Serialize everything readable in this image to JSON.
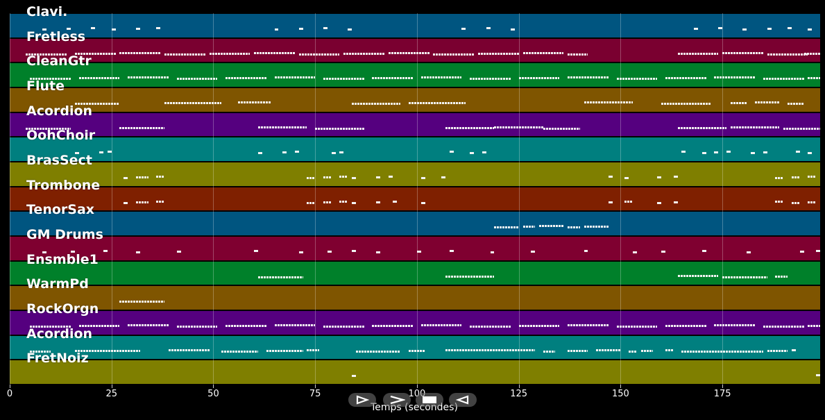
{
  "chart_data": {
    "type": "piano-roll",
    "xlabel": "Temps (secondes)",
    "xlim": [
      0,
      199
    ],
    "xticks": [
      0,
      25,
      50,
      75,
      100,
      125,
      150,
      175
    ],
    "grid": true,
    "tracks": [
      {
        "label": "Clavi.",
        "color": "#005580",
        "segments": [
          [
            8,
            1
          ],
          [
            14,
            1
          ],
          [
            20,
            1
          ],
          [
            25,
            1
          ],
          [
            31,
            1
          ],
          [
            36,
            1
          ],
          [
            65,
            1
          ],
          [
            71,
            1
          ],
          [
            77,
            1
          ],
          [
            83,
            1
          ],
          [
            111,
            1
          ],
          [
            117,
            1
          ],
          [
            123,
            1
          ],
          [
            168,
            1
          ],
          [
            174,
            1
          ],
          [
            180,
            1
          ],
          [
            186,
            1
          ],
          [
            191,
            1
          ],
          [
            196,
            1
          ]
        ]
      },
      {
        "label": "Fretless",
        "color": "#7a0030",
        "segments": [
          [
            4,
            10
          ],
          [
            16,
            10
          ],
          [
            27,
            10
          ],
          [
            38,
            10
          ],
          [
            49,
            10
          ],
          [
            60,
            10
          ],
          [
            71,
            10
          ],
          [
            82,
            10
          ],
          [
            93,
            10
          ],
          [
            104,
            10
          ],
          [
            115,
            10
          ],
          [
            126,
            10
          ],
          [
            137,
            5
          ],
          [
            164,
            10
          ],
          [
            175,
            10
          ],
          [
            186,
            10
          ],
          [
            195,
            4
          ]
        ]
      },
      {
        "label": "CleanGtr",
        "color": "#00802a",
        "segments": [
          [
            5,
            10
          ],
          [
            17,
            10
          ],
          [
            29,
            10
          ],
          [
            41,
            10
          ],
          [
            53,
            10
          ],
          [
            65,
            10
          ],
          [
            77,
            10
          ],
          [
            89,
            10
          ],
          [
            101,
            10
          ],
          [
            113,
            10
          ],
          [
            125,
            10
          ],
          [
            137,
            10
          ],
          [
            149,
            10
          ],
          [
            161,
            10
          ],
          [
            173,
            10
          ],
          [
            185,
            10
          ],
          [
            196,
            3
          ]
        ]
      },
      {
        "label": "Flute",
        "color": "#7f5500",
        "segments": [
          [
            16,
            11
          ],
          [
            38,
            14
          ],
          [
            56,
            8
          ],
          [
            84,
            12
          ],
          [
            98,
            14
          ],
          [
            141,
            12
          ],
          [
            160,
            12
          ],
          [
            177,
            4
          ],
          [
            183,
            6
          ],
          [
            191,
            4
          ]
        ]
      },
      {
        "label": "Acordion",
        "color": "#55007f",
        "segments": [
          [
            4,
            11
          ],
          [
            27,
            11
          ],
          [
            61,
            12
          ],
          [
            75,
            12
          ],
          [
            107,
            12
          ],
          [
            119,
            12
          ],
          [
            131,
            9
          ],
          [
            164,
            12
          ],
          [
            177,
            12
          ],
          [
            190,
            9
          ]
        ]
      },
      {
        "label": "OohChoir",
        "color": "#007f7f",
        "segments": [
          [
            16,
            1
          ],
          [
            22,
            1
          ],
          [
            24,
            1
          ],
          [
            61,
            1
          ],
          [
            67,
            1
          ],
          [
            70,
            1
          ],
          [
            79,
            1
          ],
          [
            81,
            1
          ],
          [
            108,
            1
          ],
          [
            113,
            1
          ],
          [
            116,
            1
          ],
          [
            165,
            1
          ],
          [
            170,
            1
          ],
          [
            173,
            1
          ],
          [
            176,
            1
          ],
          [
            182,
            1
          ],
          [
            185,
            1
          ],
          [
            193,
            1
          ],
          [
            196,
            1
          ]
        ]
      },
      {
        "label": "BrasSect",
        "color": "#7f7f00",
        "segments": [
          [
            28,
            1
          ],
          [
            31,
            3
          ],
          [
            36,
            2
          ],
          [
            73,
            2
          ],
          [
            77,
            2
          ],
          [
            81,
            2
          ],
          [
            84,
            1
          ],
          [
            90,
            1
          ],
          [
            93,
            1
          ],
          [
            101,
            1
          ],
          [
            106,
            1
          ],
          [
            147,
            1
          ],
          [
            151,
            1
          ],
          [
            159,
            1
          ],
          [
            163,
            1
          ],
          [
            188,
            2
          ],
          [
            192,
            2
          ],
          [
            196,
            2
          ]
        ]
      },
      {
        "label": "Trombone",
        "color": "#7f2000",
        "segments": [
          [
            28,
            1
          ],
          [
            31,
            3
          ],
          [
            36,
            2
          ],
          [
            73,
            2
          ],
          [
            77,
            2
          ],
          [
            81,
            2
          ],
          [
            84,
            1
          ],
          [
            90,
            1
          ],
          [
            94,
            1
          ],
          [
            101,
            1
          ],
          [
            147,
            1
          ],
          [
            151,
            2
          ],
          [
            159,
            1
          ],
          [
            163,
            1
          ],
          [
            188,
            2
          ],
          [
            192,
            2
          ],
          [
            196,
            2
          ]
        ]
      },
      {
        "label": "TenorSax",
        "color": "#005580",
        "segments": [
          [
            119,
            6
          ],
          [
            126,
            3
          ],
          [
            130,
            6
          ],
          [
            137,
            3
          ],
          [
            141,
            6
          ]
        ]
      },
      {
        "label": "GM Drums",
        "color": "#7f0030",
        "segments": [
          [
            8,
            1
          ],
          [
            15,
            1
          ],
          [
            23,
            1
          ],
          [
            31,
            1
          ],
          [
            41,
            1
          ],
          [
            60,
            1
          ],
          [
            71,
            1
          ],
          [
            78,
            1
          ],
          [
            84,
            1
          ],
          [
            90,
            1
          ],
          [
            100,
            1
          ],
          [
            108,
            1
          ],
          [
            118,
            1
          ],
          [
            128,
            1
          ],
          [
            141,
            1
          ],
          [
            153,
            1
          ],
          [
            160,
            1
          ],
          [
            170,
            1
          ],
          [
            181,
            1
          ],
          [
            194,
            1
          ],
          [
            198,
            1
          ]
        ]
      },
      {
        "label": "Ensmble1",
        "color": "#00802a",
        "segments": [
          [
            61,
            11
          ],
          [
            107,
            12
          ],
          [
            164,
            10
          ],
          [
            175,
            11
          ],
          [
            188,
            3
          ]
        ]
      },
      {
        "label": "WarmPd",
        "color": "#7f5500",
        "segments": [
          [
            27,
            11
          ]
        ]
      },
      {
        "label": "RockOrgn",
        "color": "#55007f",
        "segments": [
          [
            5,
            10
          ],
          [
            17,
            10
          ],
          [
            29,
            10
          ],
          [
            41,
            10
          ],
          [
            53,
            10
          ],
          [
            65,
            10
          ],
          [
            77,
            10
          ],
          [
            89,
            10
          ],
          [
            101,
            10
          ],
          [
            113,
            10
          ],
          [
            125,
            10
          ],
          [
            137,
            10
          ],
          [
            149,
            10
          ],
          [
            161,
            10
          ],
          [
            173,
            10
          ],
          [
            185,
            10
          ],
          [
            196,
            3
          ]
        ]
      },
      {
        "label": "Acordion",
        "color": "#007f7f",
        "segments": [
          [
            5,
            5
          ],
          [
            16,
            16
          ],
          [
            39,
            10
          ],
          [
            52,
            9
          ],
          [
            63,
            9
          ],
          [
            73,
            3
          ],
          [
            85,
            11
          ],
          [
            98,
            4
          ],
          [
            107,
            22
          ],
          [
            131,
            3
          ],
          [
            137,
            5
          ],
          [
            144,
            6
          ],
          [
            152,
            2
          ],
          [
            155,
            3
          ],
          [
            161,
            2
          ],
          [
            165,
            20
          ],
          [
            186,
            5
          ],
          [
            192,
            1
          ]
        ]
      },
      {
        "label": "FretNoiz",
        "color": "#7f7f00",
        "segments": [
          [
            84,
            1
          ],
          [
            198,
            1
          ]
        ]
      }
    ]
  },
  "controls": {
    "play": "play-icon",
    "forward": "fast-forward-icon",
    "stop": "stop-icon",
    "rewind": "rewind-icon"
  }
}
